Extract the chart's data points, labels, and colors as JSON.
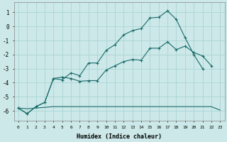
{
  "title": "",
  "xlabel": "Humidex (Indice chaleur)",
  "background_color": "#cce8e8",
  "line_color": "#1a6b6b",
  "grid_color": "#aad4d4",
  "xlim": [
    -0.5,
    23.5
  ],
  "ylim": [
    -6.7,
    1.7
  ],
  "yticks": [
    1,
    0,
    -1,
    -2,
    -3,
    -4,
    -5,
    -6
  ],
  "xticks": [
    0,
    1,
    2,
    3,
    4,
    5,
    6,
    7,
    8,
    9,
    10,
    11,
    12,
    13,
    14,
    15,
    16,
    17,
    18,
    19,
    20,
    21,
    22,
    23
  ],
  "line1_x": [
    0,
    1,
    2,
    3,
    4,
    5,
    6,
    7,
    8,
    9,
    10,
    11,
    12,
    13,
    14,
    15,
    16,
    17,
    18,
    19,
    20,
    21
  ],
  "line1_y": [
    -5.8,
    -6.2,
    -5.7,
    -5.4,
    -3.7,
    -3.8,
    -3.3,
    -3.5,
    -2.6,
    -2.6,
    -1.7,
    -1.3,
    -0.6,
    -0.3,
    -0.15,
    0.6,
    0.65,
    1.1,
    0.5,
    -0.8,
    -2.0,
    -3.0
  ],
  "line2_x": [
    0,
    1,
    2,
    3,
    4,
    5,
    6,
    7,
    8,
    9,
    10,
    11,
    12,
    13,
    14,
    15,
    16,
    17,
    18,
    19,
    20,
    21,
    22
  ],
  "line2_y": [
    -5.8,
    -6.2,
    -5.7,
    -5.4,
    -3.7,
    -3.6,
    -3.7,
    -3.9,
    -3.85,
    -3.85,
    -3.1,
    -2.8,
    -2.5,
    -2.35,
    -2.4,
    -1.55,
    -1.55,
    -1.1,
    -1.65,
    -1.4,
    -1.85,
    -2.1,
    -2.8
  ],
  "line3_x": [
    0,
    1,
    2,
    3,
    4,
    5,
    6,
    7,
    8,
    9,
    10,
    11,
    12,
    13,
    14,
    15,
    16,
    17,
    18,
    19,
    20,
    21,
    22,
    23
  ],
  "line3_y": [
    -5.8,
    -5.85,
    -5.8,
    -5.75,
    -5.7,
    -5.7,
    -5.7,
    -5.7,
    -5.7,
    -5.7,
    -5.7,
    -5.7,
    -5.7,
    -5.7,
    -5.7,
    -5.7,
    -5.7,
    -5.7,
    -5.7,
    -5.7,
    -5.7,
    -5.7,
    -5.7,
    -5.95
  ]
}
